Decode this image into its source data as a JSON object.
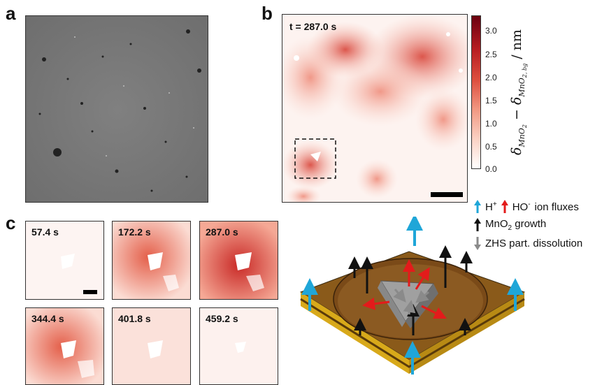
{
  "panels": {
    "a": {
      "letter": "a"
    },
    "b": {
      "letter": "b",
      "time": "t = 287.0 s"
    },
    "c": {
      "letter": "c",
      "frames": [
        "57.4 s",
        "172.2 s",
        "287.0 s",
        "344.4 s",
        "401.8 s",
        "459.2 s"
      ]
    }
  },
  "colorbar": {
    "ticks": [
      "3.0",
      "2.5",
      "2.0",
      "1.5",
      "1.0",
      "0.5",
      "0.0"
    ],
    "label_main": "δ",
    "label_sub1": "MnO",
    "label_sub1b": "2",
    "label_mid": " − δ",
    "label_sub2": "MnO",
    "label_sub2b": "2, bg",
    "label_unit": " / nm",
    "colors": {
      "low": "#ffffff",
      "high": "#6b0010"
    }
  },
  "legend": {
    "flux_a": "H",
    "flux_a_sup": "+",
    "flux_b": "HO",
    "flux_b_sup": "-",
    "flux_text": "ion fluxes",
    "growth_a": "MnO",
    "growth_sub": "2",
    "growth_text": " growth",
    "dissolution": "ZHS part. dissolution",
    "arrow_colors": {
      "blue": "#1fa6d8",
      "red": "#e31b1b",
      "black": "#111111",
      "grey": "#8a8a8a"
    }
  }
}
